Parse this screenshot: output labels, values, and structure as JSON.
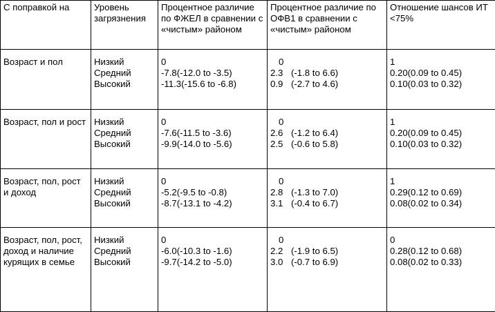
{
  "header": {
    "adjusted_for": "С поправкой на",
    "pollution_level": "Уровень загрязнения",
    "fvc_diff": "Процентное различие по ФЖЕЛ в сравнении с «чистым» районом",
    "fev1_diff": "Процентное различие по ОФВ1 в сравнении с «чистым» районом",
    "odds_ratio": "Отношение шансов ИТ <75%"
  },
  "rows": [
    {
      "adjustment": "Возраст и пол",
      "levels": [
        "Низкий",
        "Средний",
        "Высокий"
      ],
      "fvc": [
        "0",
        "-7.8(-12.0 to -3.5)",
        "-11.3(-15.6 to -6.8)"
      ],
      "fev1_value": [
        "0",
        "2.3",
        "0.9"
      ],
      "fev1_ci": [
        "",
        "(-1.8 to 6.6)",
        "(-2.7 to 4.6)"
      ],
      "odds": [
        "1",
        "0.20(0.09 to 0.45)",
        "0.10(0.03 to 0.32)"
      ]
    },
    {
      "adjustment": "Возраст, пол и рост",
      "levels": [
        "Низкий",
        "Средний",
        "Высокий"
      ],
      "fvc": [
        "0",
        "-7.6(-11.5 to -3.6)",
        "-9.9(-14.0 to -5.6)"
      ],
      "fev1_value": [
        "0",
        "2.6",
        "2.5"
      ],
      "fev1_ci": [
        "",
        "(-1.2 to 6.4)",
        "(-0.6 to 5.8)"
      ],
      "odds": [
        "1",
        "0.20(0.09 to 0.45)",
        "0.10(0.03 to 0.32)"
      ]
    },
    {
      "adjustment": "Возраст, пол, рост и доход",
      "levels": [
        "Низкий",
        "Средний",
        "Высокий"
      ],
      "fvc": [
        "0",
        "-5.2(-9.5 to -0.8)",
        "-8.7(-13.1 to -4.2)"
      ],
      "fev1_value": [
        "0",
        "2.8",
        "3.1"
      ],
      "fev1_ci": [
        "",
        "(-1.3 to 7.0)",
        "(-0.4 to 6.7)"
      ],
      "odds": [
        "1",
        "0.29(0.12 to 0.69)",
        "0.08(0.02 to 0.34)"
      ]
    },
    {
      "adjustment": "Возраст, пол, рост, доход и наличие курящих в семье",
      "levels": [
        "Низкий",
        "Средний",
        "Высокий"
      ],
      "fvc": [
        "0",
        "-6.0(-10.3 to -1.6)",
        "-9.7(-14.2 to -5.0)"
      ],
      "fev1_value": [
        "0",
        "2.2",
        "3.0"
      ],
      "fev1_ci": [
        "",
        "(-1.9 to 6.5)",
        "(-0.7 to 6.9)"
      ],
      "odds": [
        "0",
        "0.28(0.12 to 0.68)",
        "0.08(0.02 to 0.33)"
      ]
    }
  ]
}
